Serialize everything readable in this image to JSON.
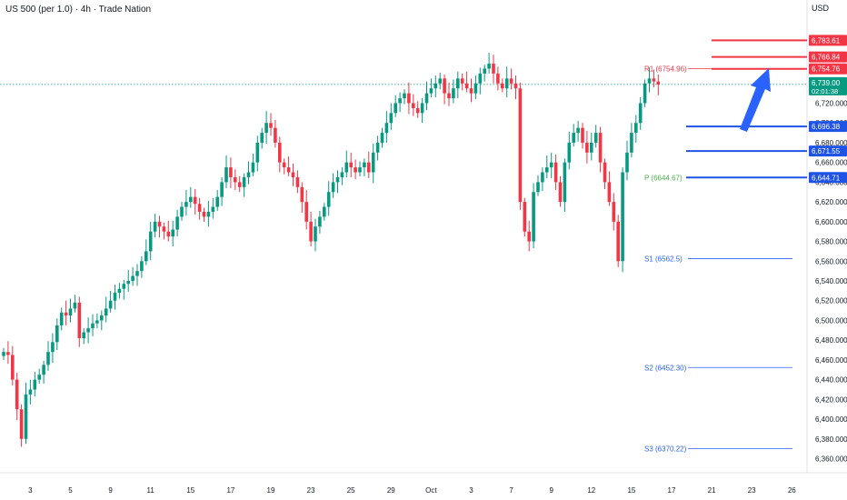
{
  "header": {
    "title": "US 500 (per 1.0) · 4h · Trade Nation",
    "currency": "USD"
  },
  "chart_data": {
    "type": "candlestick",
    "y_ticks": [
      6360,
      6380,
      6400,
      6420,
      6440,
      6460,
      6480,
      6500,
      6520,
      6540,
      6560,
      6580,
      6600,
      6620,
      6640,
      6660,
      6680,
      6700,
      6720
    ],
    "x_labels": [
      {
        "i": 6,
        "label": "3"
      },
      {
        "i": 15,
        "label": "5"
      },
      {
        "i": 24,
        "label": "9"
      },
      {
        "i": 33,
        "label": "11"
      },
      {
        "i": 42,
        "label": "15"
      },
      {
        "i": 51,
        "label": "17"
      },
      {
        "i": 60,
        "label": "19"
      },
      {
        "i": 69,
        "label": "23"
      },
      {
        "i": 78,
        "label": "25"
      },
      {
        "i": 87,
        "label": "29"
      },
      {
        "i": 96,
        "label": "Oct"
      },
      {
        "i": 105,
        "label": "3"
      },
      {
        "i": 114,
        "label": "7"
      },
      {
        "i": 123,
        "label": "9"
      },
      {
        "i": 132,
        "label": "12"
      },
      {
        "i": 141,
        "label": "15"
      },
      {
        "i": 150,
        "label": "17"
      },
      {
        "i": 159,
        "label": "21"
      },
      {
        "i": 168,
        "label": "23"
      },
      {
        "i": 177,
        "label": "26"
      }
    ],
    "current_price": 6739.0,
    "current_price_label": "6,739.00",
    "countdown": "02:01:38",
    "resistance_levels": [
      {
        "value": 6783.61,
        "label": "6,783.61"
      },
      {
        "value": 6766.84,
        "label": "6,766.84"
      },
      {
        "value": 6754.76,
        "label": "6,754.76"
      }
    ],
    "support_levels": [
      {
        "value": 6696.38,
        "label": "6,696.38"
      },
      {
        "value": 6671.55,
        "label": "6,671.55"
      },
      {
        "value": 6644.71,
        "label": "6,644.71"
      }
    ],
    "pivots": [
      {
        "name": "R1",
        "value": 6754.96,
        "label": "R1 (6754.96)",
        "color": "#f23645"
      },
      {
        "name": "P",
        "value": 6644.67,
        "label": "P (6644.67)",
        "color": "#4caf50"
      },
      {
        "name": "S1",
        "value": 6562.5,
        "label": "S1 (6562.5)",
        "color": "#2962ff"
      },
      {
        "name": "S2",
        "value": 6452.3,
        "label": "S2 (6452.30)",
        "color": "#2962ff"
      },
      {
        "name": "S3",
        "value": 6370.22,
        "label": "S3 (6370.22)",
        "color": "#2962ff"
      }
    ],
    "candles_approx_close": [
      6468,
      6465,
      6440,
      6410,
      6380,
      6425,
      6430,
      6440,
      6445,
      6455,
      6468,
      6478,
      6495,
      6508,
      6505,
      6512,
      6518,
      6482,
      6488,
      6492,
      6497,
      6500,
      6505,
      6512,
      6520,
      6528,
      6532,
      6537,
      6540,
      6545,
      6550,
      6560,
      6570,
      6590,
      6600,
      6595,
      6590,
      6585,
      6592,
      6605,
      6615,
      6620,
      6625,
      6618,
      6610,
      6605,
      6610,
      6615,
      6625,
      6640,
      6655,
      6645,
      6640,
      6635,
      6645,
      6650,
      6660,
      6680,
      6690,
      6700,
      6695,
      6680,
      6660,
      6655,
      6650,
      6645,
      6635,
      6620,
      6600,
      6580,
      6595,
      6605,
      6615,
      6630,
      6640,
      6645,
      6650,
      6660,
      6655,
      6650,
      6655,
      6660,
      6650,
      6670,
      6680,
      6690,
      6700,
      6710,
      6720,
      6725,
      6730,
      6720,
      6715,
      6710,
      6720,
      6730,
      6735,
      6740,
      6745,
      6730,
      6725,
      6735,
      6745,
      6740,
      6735,
      6730,
      6740,
      6750,
      6755,
      6760,
      6750,
      6740,
      6735,
      6745,
      6740,
      6735,
      6620,
      6590,
      6580,
      6630,
      6640,
      6650,
      6655,
      6660,
      6640,
      6620,
      6660,
      6680,
      6690,
      6695,
      6680,
      6670,
      6680,
      6690,
      6660,
      6640,
      6620,
      6600,
      6560,
      6650,
      6670,
      6690,
      6700,
      6720,
      6740,
      6745,
      6742,
      6739
    ]
  }
}
